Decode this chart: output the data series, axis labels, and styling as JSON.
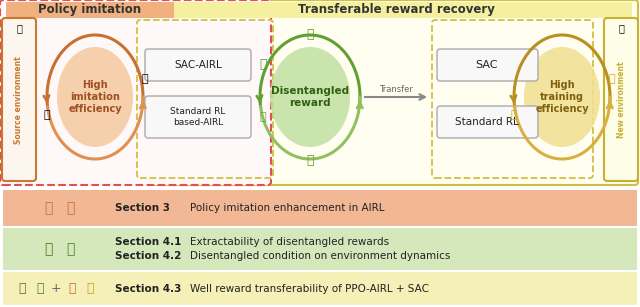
{
  "bg_color": "#ffffff",
  "policy_imitation_title": "Policy imitation",
  "transferable_title": "Transferable reward recovery",
  "source_env_label": "Source environment",
  "new_env_label": "New environment",
  "sac_airl_label": "SAC-AIRL",
  "std_rl_label": "Standard RL\nbased-AIRL",
  "high_imitation_label": "High\nimitation\nefficiency",
  "disentangled_label": "Disentangled\nreward",
  "transfer_label": "Transfer",
  "sac_label": "SAC",
  "std_rl_right_label": "Standard RL",
  "high_training_label": "High\ntraining\nefficiency",
  "legend_rows": [
    {
      "bg": "#f2b896",
      "section": "Section 3",
      "text": "Policy imitation enhancement in AIRL"
    },
    {
      "bg": "#d4e8bc",
      "section1": "Section 4.1",
      "text1": "Extractability of disentangled rewards",
      "section2": "Section 4.2",
      "text2": "Disentangled condition on environment dynamics"
    },
    {
      "bg": "#f5efb8",
      "section": "Section 4.3",
      "text": "Well reward transferability of PPO-AIRL + SAC"
    }
  ],
  "colors": {
    "orange_dark": "#c87030",
    "orange_mid": "#e09050",
    "orange_light": "#f0c090",
    "green_dark": "#60a030",
    "green_mid": "#90c060",
    "green_light": "#b8d890",
    "gold_dark": "#b89020",
    "gold_mid": "#d8b040",
    "gold_light": "#f0d878",
    "red_border": "#e05050",
    "yellow_border": "#d0c040",
    "orange_border": "#c87830",
    "yellow_env_border": "#c8b030",
    "gray_box": "#aaaaaa",
    "gray_box_fill": "#f8f8f8"
  }
}
